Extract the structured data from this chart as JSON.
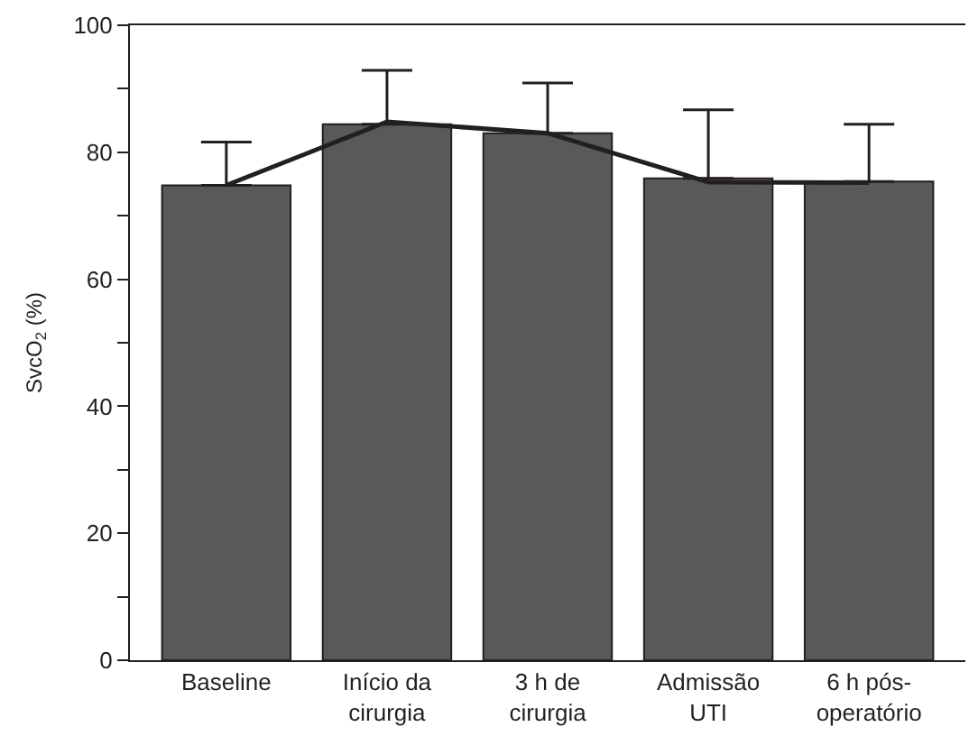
{
  "chart_data": {
    "type": "bar",
    "ylabel": "SvcO$_{2}$ (%)",
    "categories": [
      "Baseline",
      "Início da\ncirurgia",
      "3 h de\ncirurgia",
      "Admissão\nUTI",
      "6 h pós-\noperatório"
    ],
    "series": [
      {
        "color": "#58595b",
        "values": [
          74.8,
          84.4,
          83.0,
          75.9,
          75.4
        ],
        "errors": [
          [
            74.8,
            81.6
          ],
          [
            84.4,
            92.9
          ],
          [
            83.0,
            90.9
          ],
          [
            75.9,
            86.7
          ],
          [
            75.4,
            84.4
          ]
        ]
      },
      {
        "type": "line",
        "color": "#231f20",
        "values": [
          74.8,
          84.8,
          83.0,
          75.3,
          75.2
        ],
        "marker": "none"
      }
    ],
    "ylim": [
      0,
      100
    ],
    "yticks": [
      0,
      {
        "value": 10,
        "label": null
      },
      20,
      {
        "value": 30,
        "label": null
      },
      40,
      {
        "value": 50,
        "label": null
      },
      60,
      {
        "value": 70,
        "label": null
      },
      80,
      {
        "value": 90,
        "label": null
      },
      100
    ],
    "tick_labels": true
  }
}
